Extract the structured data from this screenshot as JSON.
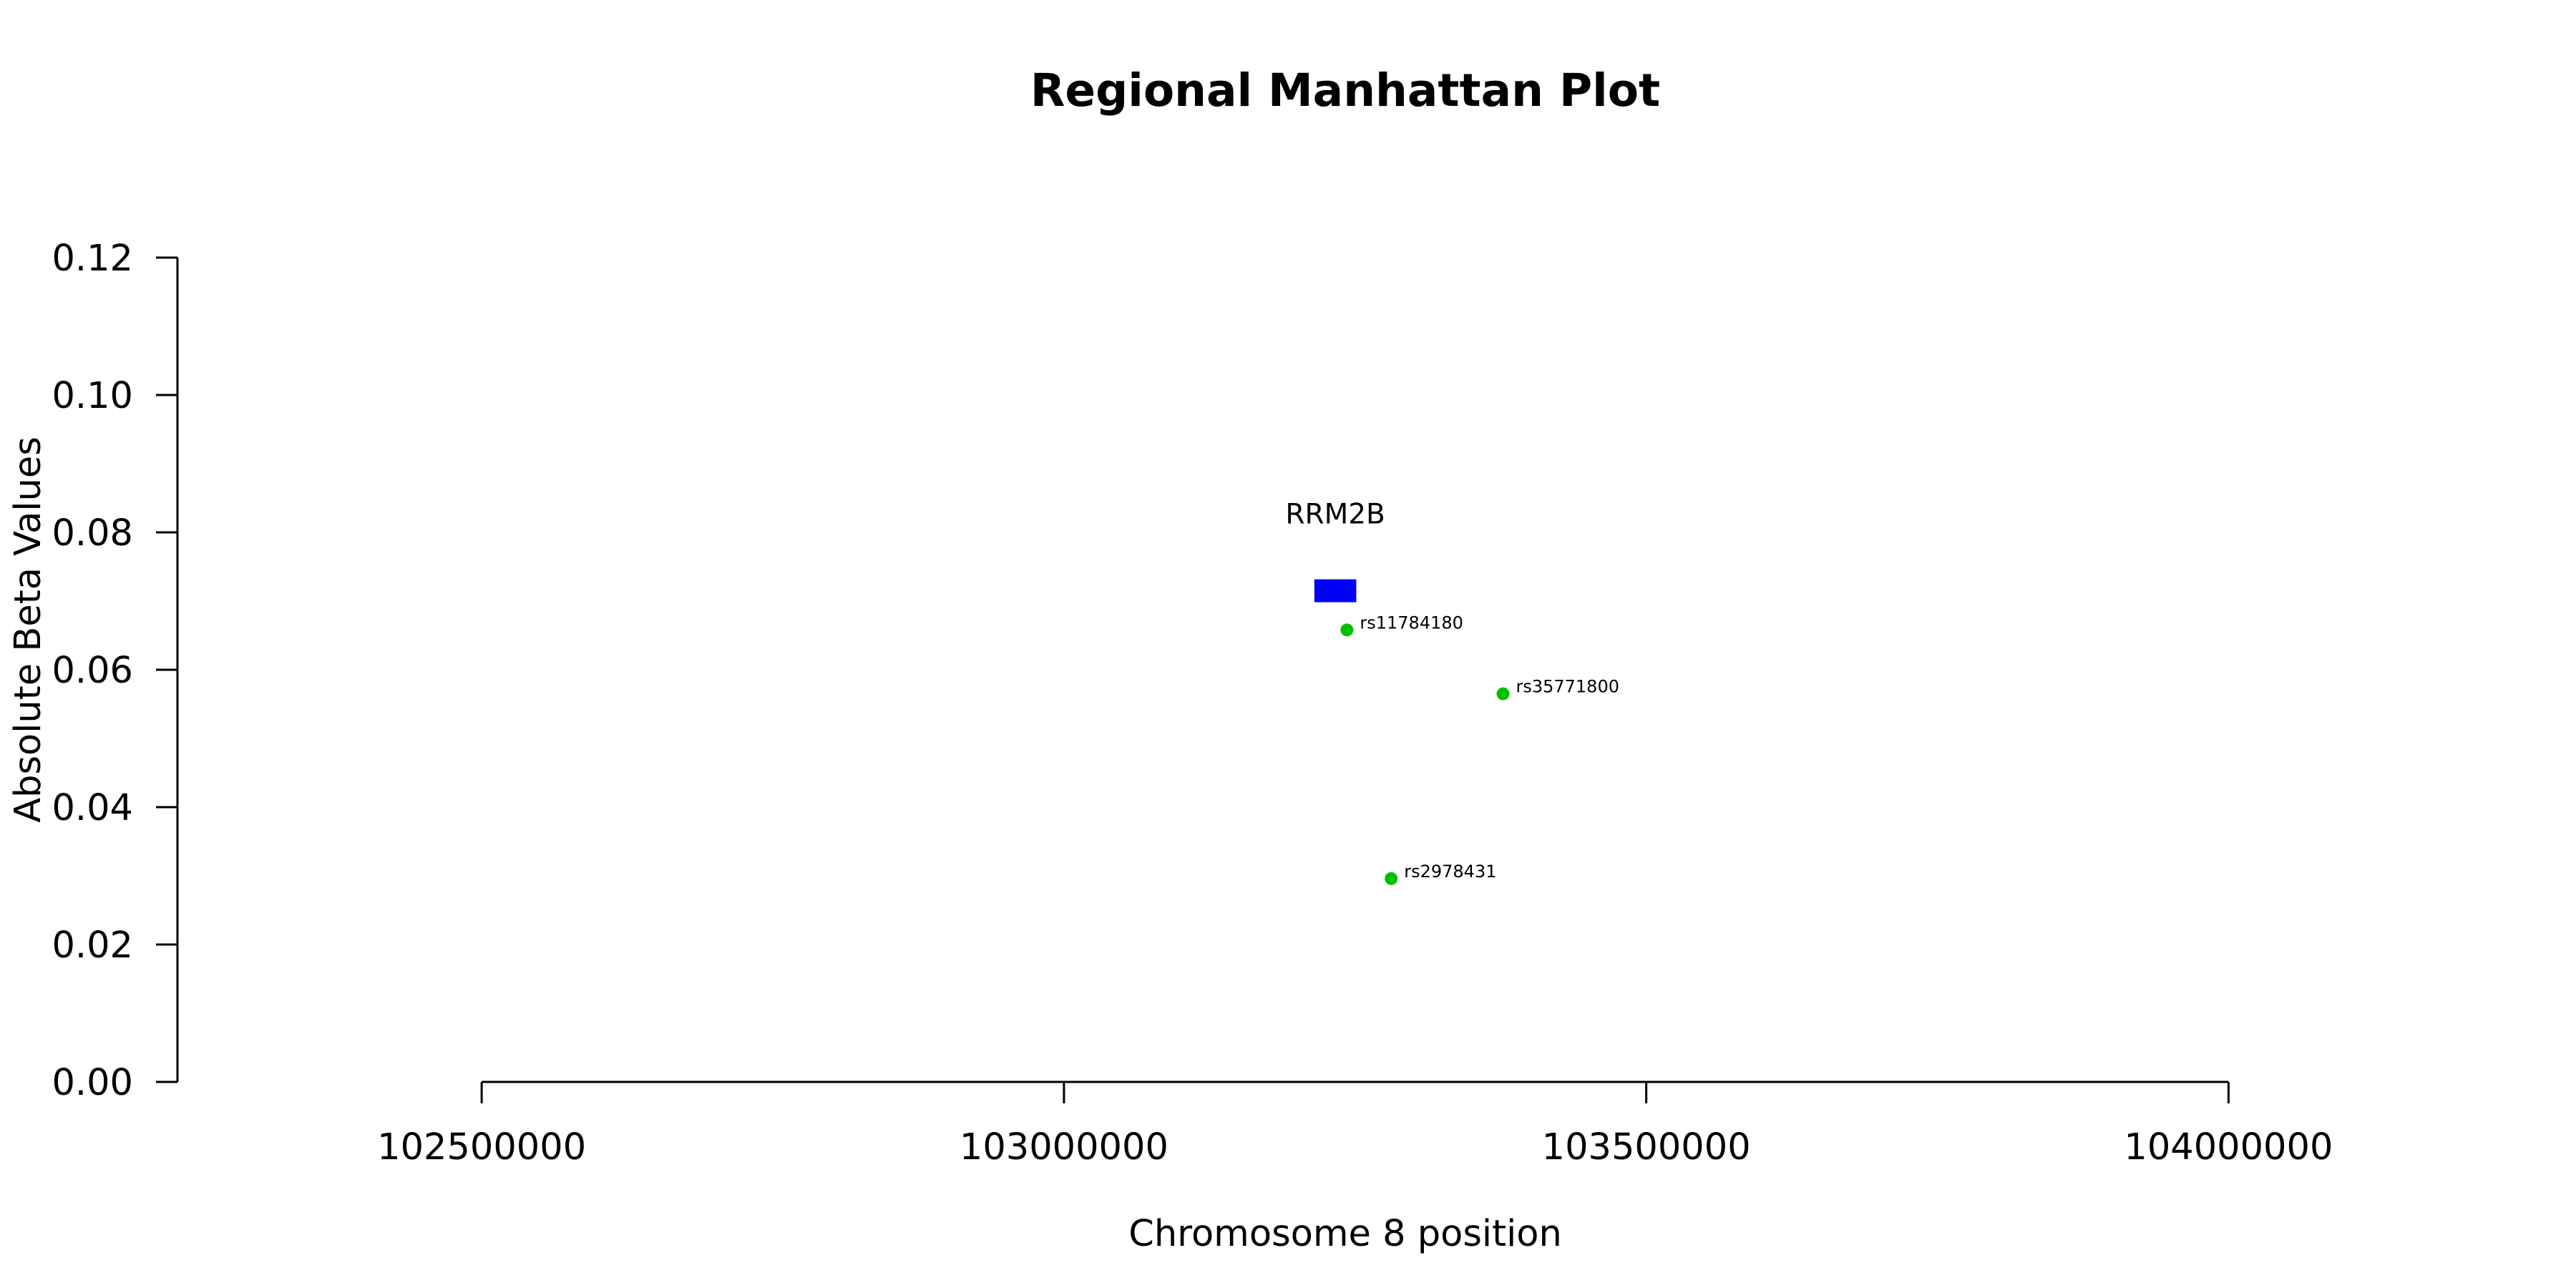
{
  "chart_data": {
    "type": "scatter",
    "title": "Regional Manhattan Plot",
    "xlabel": "Chromosome 8 position",
    "ylabel": "Absolute Beta Values",
    "xlim": [
      102240000,
      104240000
    ],
    "ylim": [
      0,
      0.12
    ],
    "x_ticks": [
      102500000,
      103000000,
      103500000,
      104000000
    ],
    "x_tick_labels": [
      "102500000",
      "103000000",
      "103500000",
      "104000000"
    ],
    "y_ticks": [
      0,
      0.02,
      0.04,
      0.06,
      0.08,
      0.1,
      0.12
    ],
    "y_tick_labels": [
      "0.00",
      "0.02",
      "0.04",
      "0.06",
      "0.08",
      "0.10",
      "0.12"
    ],
    "grid": false,
    "points": [
      {
        "label": "rs11784180",
        "x": 103243000,
        "y": 0.0658
      },
      {
        "label": "rs35771800",
        "x": 103377000,
        "y": 0.0565
      },
      {
        "label": "rs2978431",
        "x": 103281000,
        "y": 0.0296
      }
    ],
    "point_color": "#00c000",
    "gene": {
      "name": "RRM2B",
      "start": 103215000,
      "end": 103251000,
      "y": 0.0715,
      "color": "#0000ff"
    }
  }
}
